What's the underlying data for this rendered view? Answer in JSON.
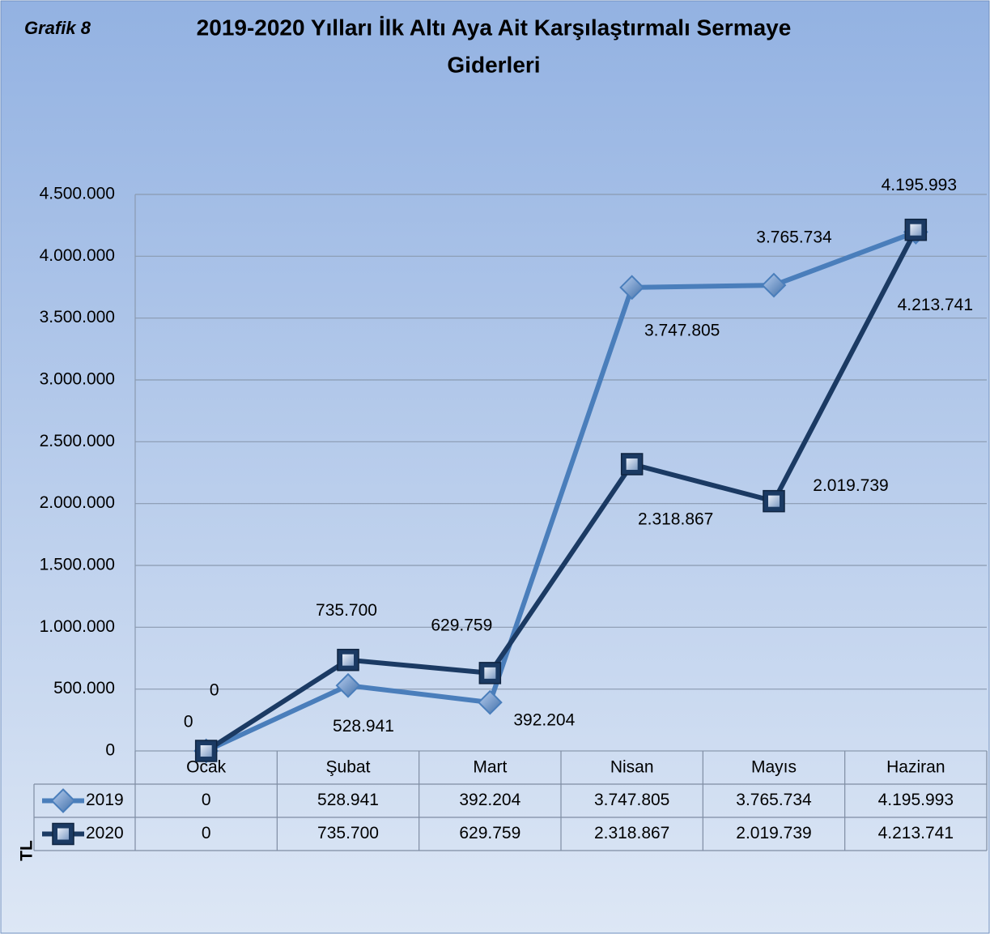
{
  "chart_data": {
    "type": "line",
    "label": "Grafik  8",
    "title": "2019-2020  Yılları İlk Altı Aya Ait Karşılaştırmalı Sermaye",
    "title_line2": "Giderleri",
    "ylabel": "TL",
    "categories": [
      "Ocak",
      "Şubat",
      "Mart",
      "Nisan",
      "Mayıs",
      "Haziran"
    ],
    "series": [
      {
        "name": "2019",
        "color": "#4a7ebb",
        "marker": "diamond",
        "values": [
          0,
          528941,
          392204,
          3747805,
          3765734,
          4195993
        ],
        "value_labels": [
          "0",
          "528.941",
          "392.204",
          "3.747.805",
          "3.765.734",
          "4.195.993"
        ]
      },
      {
        "name": "2020",
        "color": "#1b3a63",
        "marker": "square",
        "values": [
          0,
          735700,
          629759,
          2318867,
          2019739,
          4213741
        ],
        "value_labels": [
          "0",
          "735.700",
          "629.759",
          "2.318.867",
          "2.019.739",
          "4.213.741"
        ]
      }
    ],
    "ylim": [
      0,
      4500000
    ],
    "yticks": [
      0,
      {
        "value": 500000,
        "label": "500.000"
      },
      {
        "value": 1000000,
        "label": "1.000.000"
      },
      {
        "value": 1500000,
        "label": "1.500.000"
      },
      {
        "value": 2000000,
        "label": "2.000.000"
      },
      {
        "value": 2500000,
        "label": "2.500.000"
      },
      {
        "value": 3000000,
        "label": "3.000.000"
      },
      {
        "value": 3500000,
        "label": "3.500.000"
      },
      {
        "value": 4000000,
        "label": "4.000.000"
      },
      {
        "value": 4500000,
        "label": "4.500.000"
      }
    ],
    "grid": true,
    "data_table": true
  }
}
